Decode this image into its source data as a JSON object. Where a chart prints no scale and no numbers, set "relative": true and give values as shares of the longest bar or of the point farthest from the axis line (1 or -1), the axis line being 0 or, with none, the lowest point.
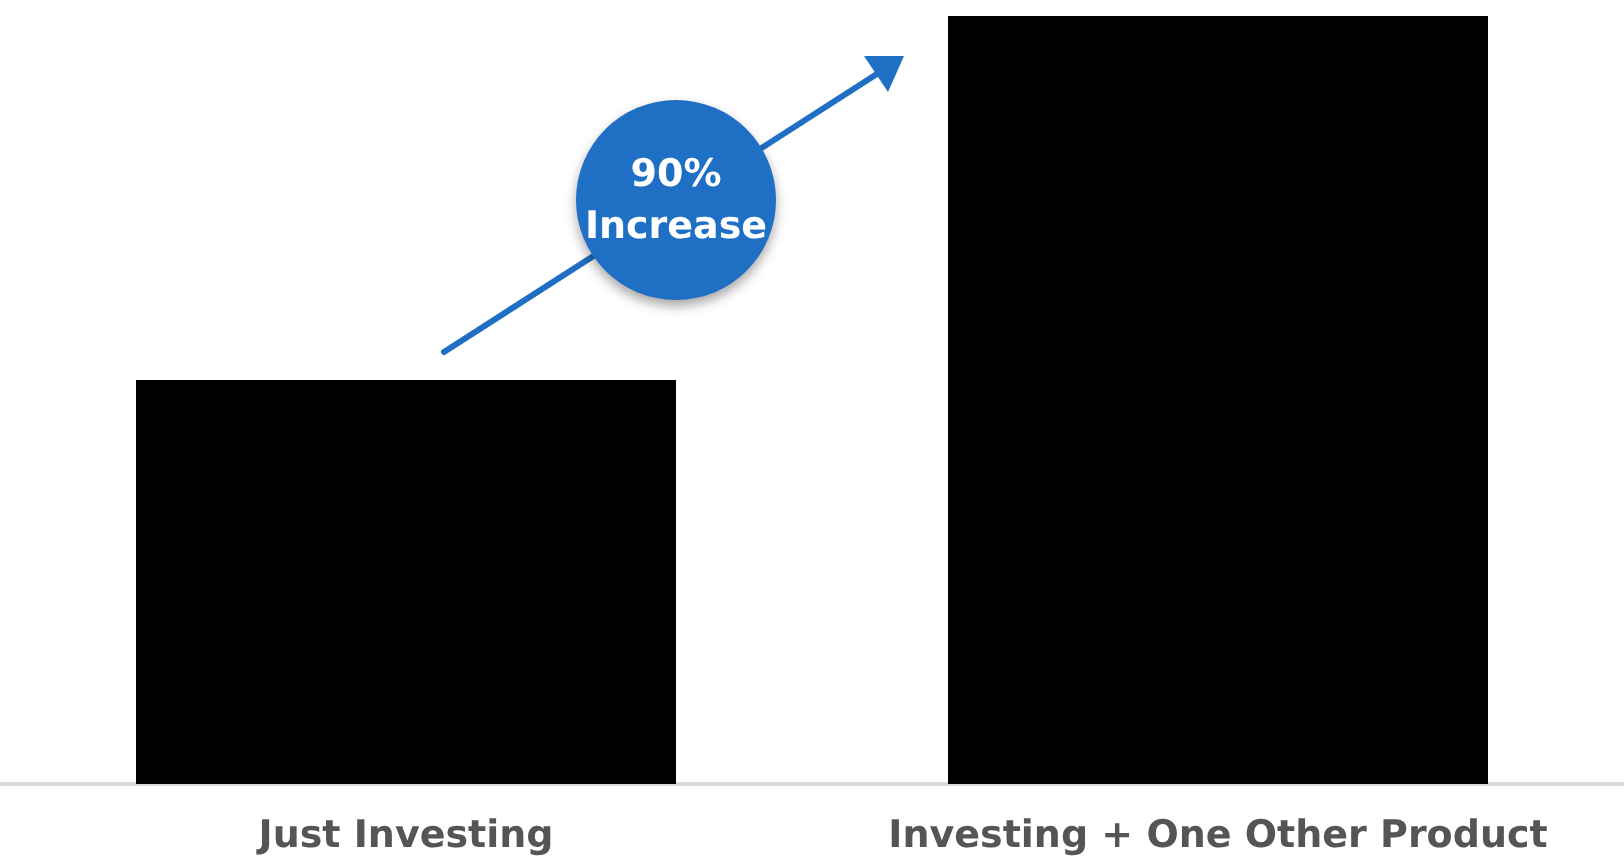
{
  "chart_data": {
    "type": "bar",
    "relative": true,
    "categories": [
      "Just Investing",
      "Investing + One Other Product"
    ],
    "values": [
      0.526,
      1
    ],
    "color": "#000000",
    "grid": false,
    "annotations": [
      "90% Increase"
    ]
  }
}
